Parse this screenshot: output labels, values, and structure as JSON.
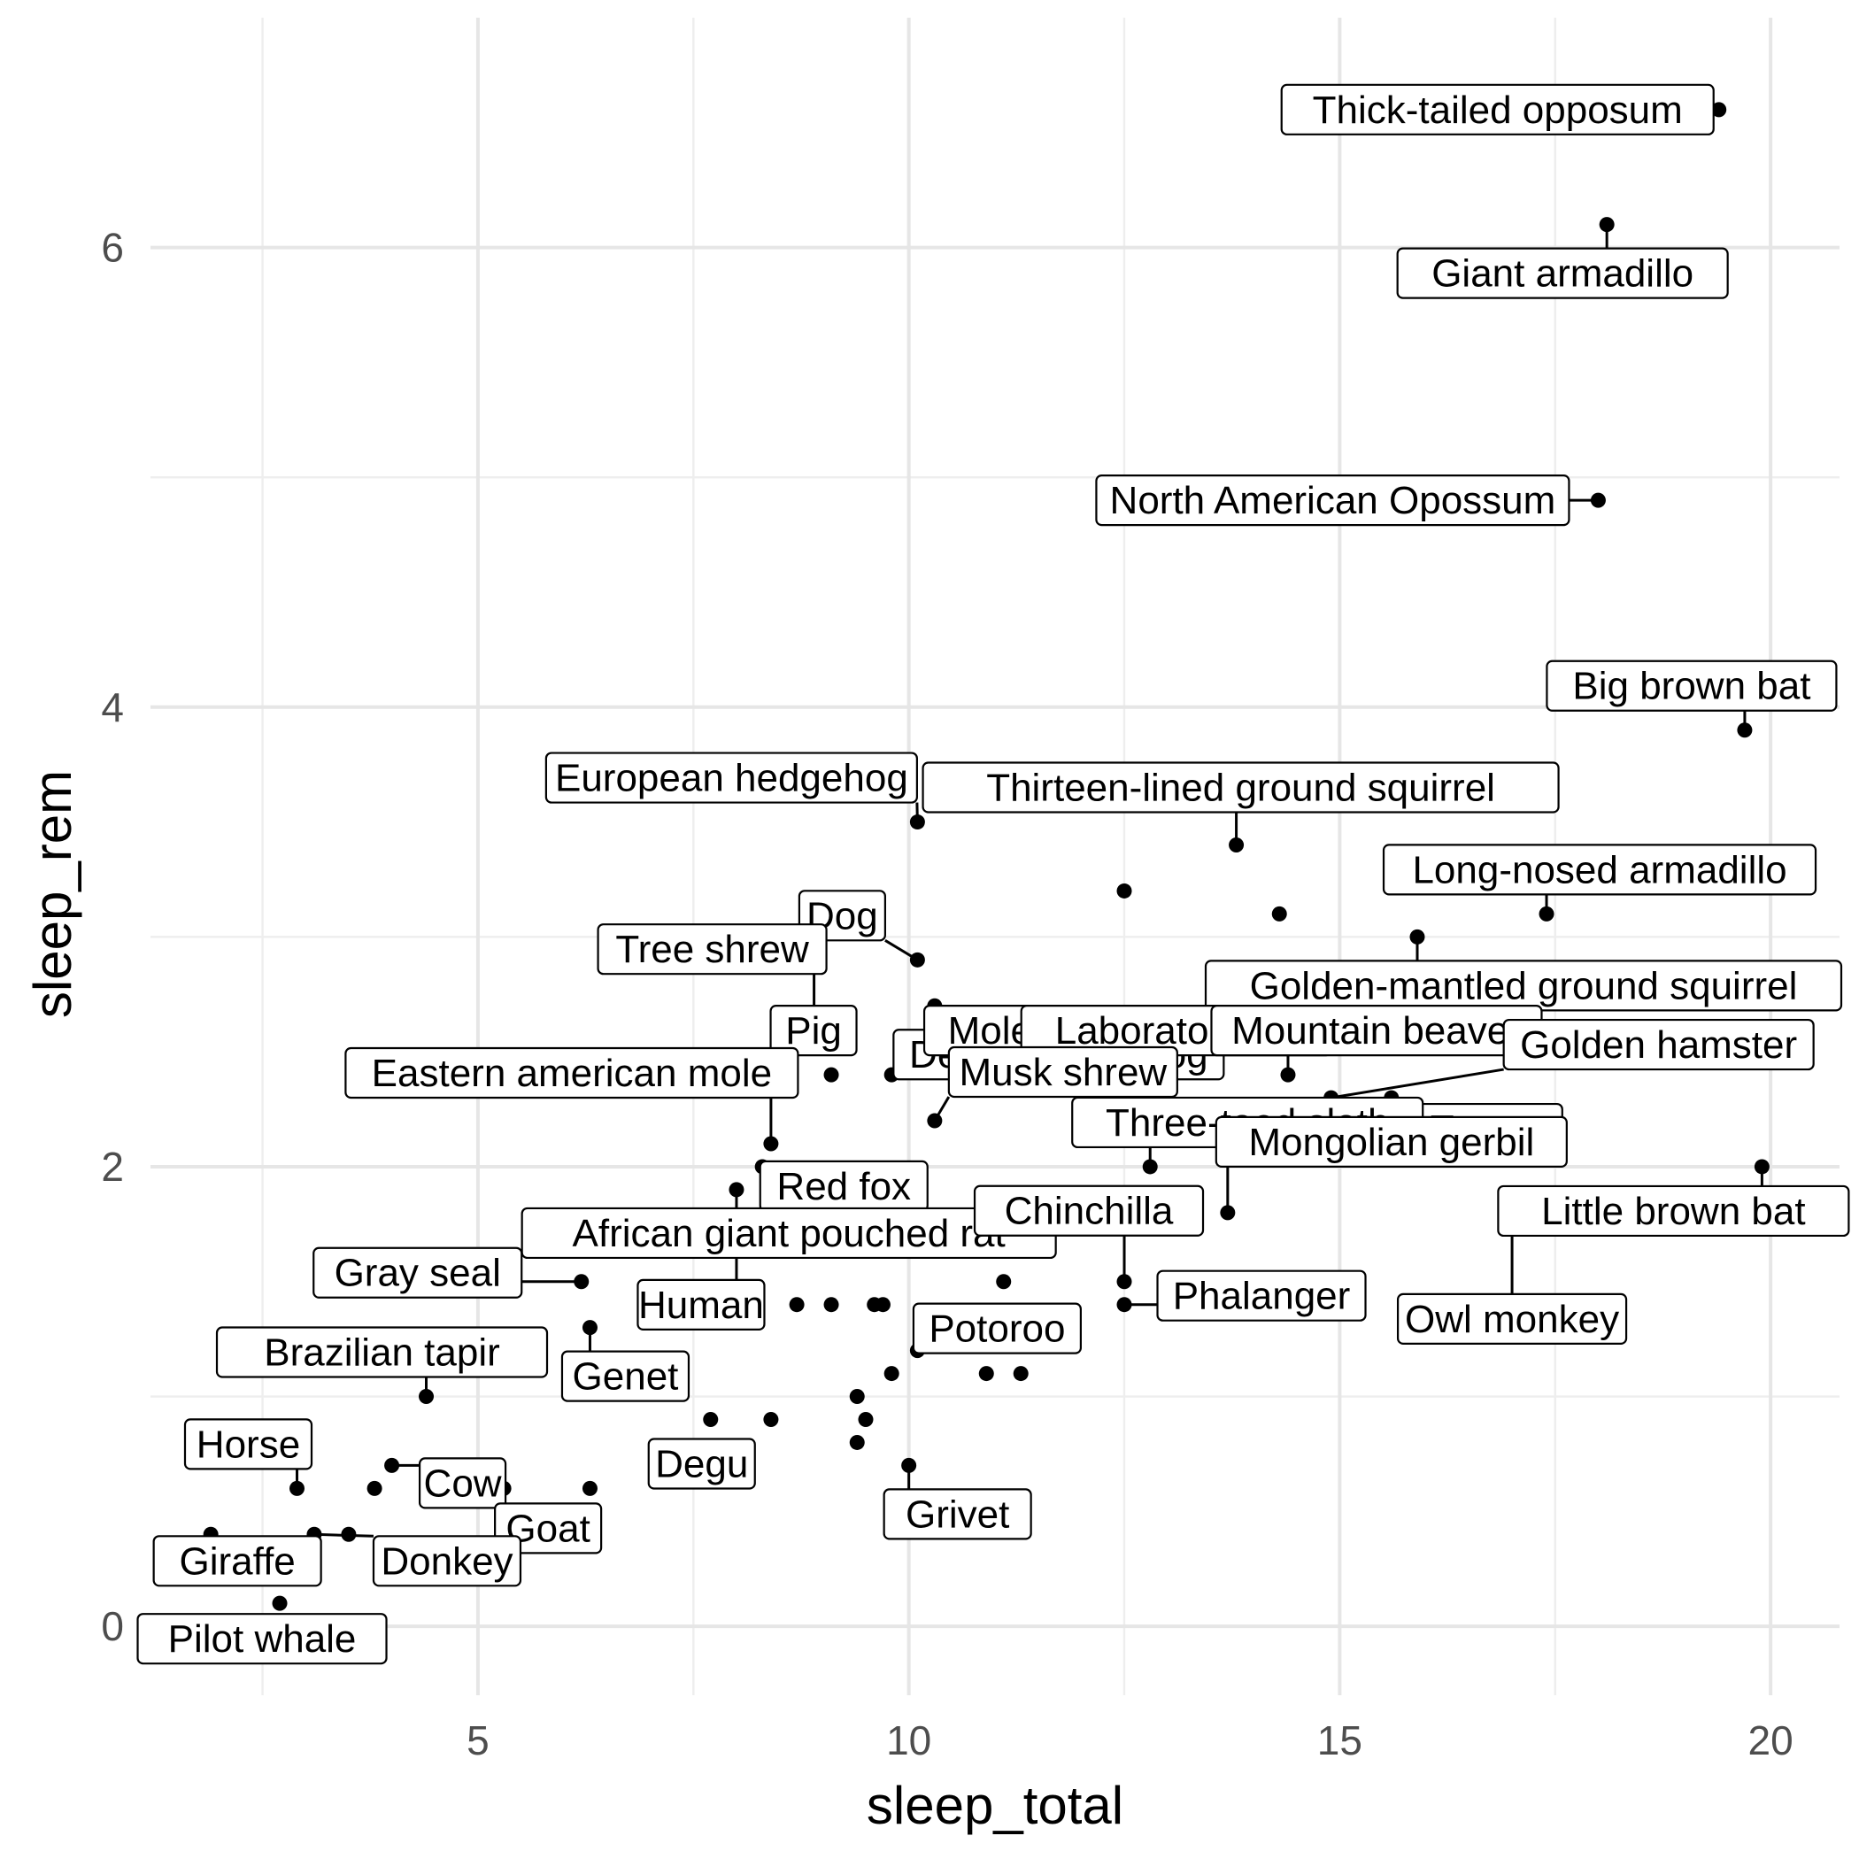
{
  "chart_data": {
    "type": "scatter",
    "xlabel": "sleep_total",
    "ylabel": "sleep_rem",
    "xlim": [
      1.2,
      20.8
    ],
    "ylim": [
      -0.3,
      7.0
    ],
    "x_ticks": [
      5,
      10,
      15,
      20
    ],
    "y_ticks": [
      0,
      2,
      4,
      6
    ],
    "grid": true,
    "points": [
      {
        "x": 19.4,
        "y": 6.6,
        "label": "Thick-tailed opposum"
      },
      {
        "x": 18.1,
        "y": 6.1,
        "label": "Giant armadillo"
      },
      {
        "x": 18.0,
        "y": 4.9,
        "label": "North American Opossum"
      },
      {
        "x": 19.7,
        "y": 3.9,
        "label": "Big brown bat"
      },
      {
        "x": 10.1,
        "y": 3.5,
        "label": "European hedgehog"
      },
      {
        "x": 13.8,
        "y": 3.4,
        "label": "Thirteen-lined ground squirrel"
      },
      {
        "x": 17.4,
        "y": 3.1,
        "label": "Long-nosed armadillo"
      },
      {
        "x": 10.1,
        "y": 2.9,
        "label": "Dog"
      },
      {
        "x": 12.5,
        "y": 3.2,
        "label": ""
      },
      {
        "x": 14.3,
        "y": 3.1,
        "label": ""
      },
      {
        "x": 15.9,
        "y": 3.0,
        "label": "Golden-mantled ground squirrel"
      },
      {
        "x": 10.3,
        "y": 2.7,
        "label": "Desert hedgehog"
      },
      {
        "x": 8.9,
        "y": 2.6,
        "label": "Tree shrew"
      },
      {
        "x": 9.1,
        "y": 2.4,
        "label": "Pig"
      },
      {
        "x": 9.8,
        "y": 2.4,
        "label": ""
      },
      {
        "x": 10.6,
        "y": 2.4,
        "label": "Mole rat"
      },
      {
        "x": 13.0,
        "y": 2.4,
        "label": "Laboratory rat"
      },
      {
        "x": 14.4,
        "y": 2.4,
        "label": "Mountain beaver"
      },
      {
        "x": 14.9,
        "y": 2.3,
        "label": "Golden hamster"
      },
      {
        "x": 15.6,
        "y": 2.3,
        "label": "Tenrec"
      },
      {
        "x": 8.4,
        "y": 2.1,
        "label": "Eastern american mole"
      },
      {
        "x": 9.4,
        "y": 1.8,
        "label": "Red fox"
      },
      {
        "x": 10.3,
        "y": 2.2,
        "label": "Musk shrew"
      },
      {
        "x": 12.8,
        "y": 2.0,
        "label": "Three-toed sloth"
      },
      {
        "x": 19.9,
        "y": 2.0,
        "label": "Little brown bat"
      },
      {
        "x": 8.3,
        "y": 2.0,
        "label": "African giant pouched rat"
      },
      {
        "x": 8.0,
        "y": 1.9,
        "label": "Human"
      },
      {
        "x": 12.5,
        "y": 1.5,
        "label": "Chinchilla"
      },
      {
        "x": 13.7,
        "y": 1.8,
        "label": "Mongolian gerbil"
      },
      {
        "x": 17.0,
        "y": 1.8,
        "label": "Owl monkey"
      },
      {
        "x": 12.5,
        "y": 1.4,
        "label": "Phalanger"
      },
      {
        "x": 6.2,
        "y": 1.5,
        "label": "Gray seal"
      },
      {
        "x": 6.3,
        "y": 1.3,
        "label": "Genet"
      },
      {
        "x": 11.1,
        "y": 1.5,
        "label": ""
      },
      {
        "x": 8.7,
        "y": 1.4,
        "label": ""
      },
      {
        "x": 9.1,
        "y": 1.4,
        "label": ""
      },
      {
        "x": 9.6,
        "y": 1.4,
        "label": ""
      },
      {
        "x": 9.7,
        "y": 1.4,
        "label": ""
      },
      {
        "x": 10.1,
        "y": 1.2,
        "label": "Potoroo"
      },
      {
        "x": 9.8,
        "y": 1.1,
        "label": ""
      },
      {
        "x": 10.9,
        "y": 1.1,
        "label": ""
      },
      {
        "x": 11.3,
        "y": 1.1,
        "label": ""
      },
      {
        "x": 4.4,
        "y": 1.0,
        "label": "Brazilian tapir"
      },
      {
        "x": 9.4,
        "y": 1.0,
        "label": ""
      },
      {
        "x": 7.7,
        "y": 0.9,
        "label": "Degu"
      },
      {
        "x": 8.4,
        "y": 0.9,
        "label": ""
      },
      {
        "x": 9.5,
        "y": 0.9,
        "label": ""
      },
      {
        "x": 9.4,
        "y": 0.8,
        "label": ""
      },
      {
        "x": 10.0,
        "y": 0.7,
        "label": "Grivet"
      },
      {
        "x": 4.0,
        "y": 0.7,
        "label": "Cow"
      },
      {
        "x": 3.8,
        "y": 0.6,
        "label": ""
      },
      {
        "x": 5.3,
        "y": 0.6,
        "label": "Goat"
      },
      {
        "x": 6.3,
        "y": 0.6,
        "label": ""
      },
      {
        "x": 5.3,
        "y": 0.5,
        "label": ""
      },
      {
        "x": 5.4,
        "y": 0.5,
        "label": ""
      },
      {
        "x": 2.9,
        "y": 0.6,
        "label": "Horse"
      },
      {
        "x": 3.1,
        "y": 0.4,
        "label": "Donkey"
      },
      {
        "x": 3.5,
        "y": 0.4,
        "label": ""
      },
      {
        "x": 1.9,
        "y": 0.4,
        "label": "Giraffe"
      },
      {
        "x": 2.7,
        "y": 0.1,
        "label": "Pilot whale"
      }
    ]
  }
}
